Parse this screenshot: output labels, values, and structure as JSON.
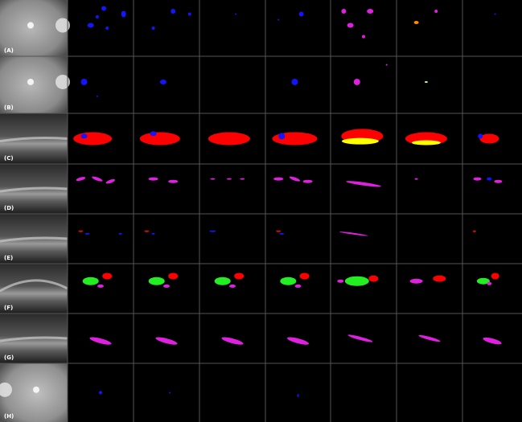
{
  "panels": [
    {
      "label": "(A)"
    },
    {
      "label": "(B)"
    },
    {
      "label": "(C)"
    },
    {
      "label": "(D)"
    },
    {
      "label": "(E)"
    },
    {
      "label": "(F)"
    },
    {
      "label": "(G)"
    },
    {
      "label": "(H)"
    }
  ]
}
